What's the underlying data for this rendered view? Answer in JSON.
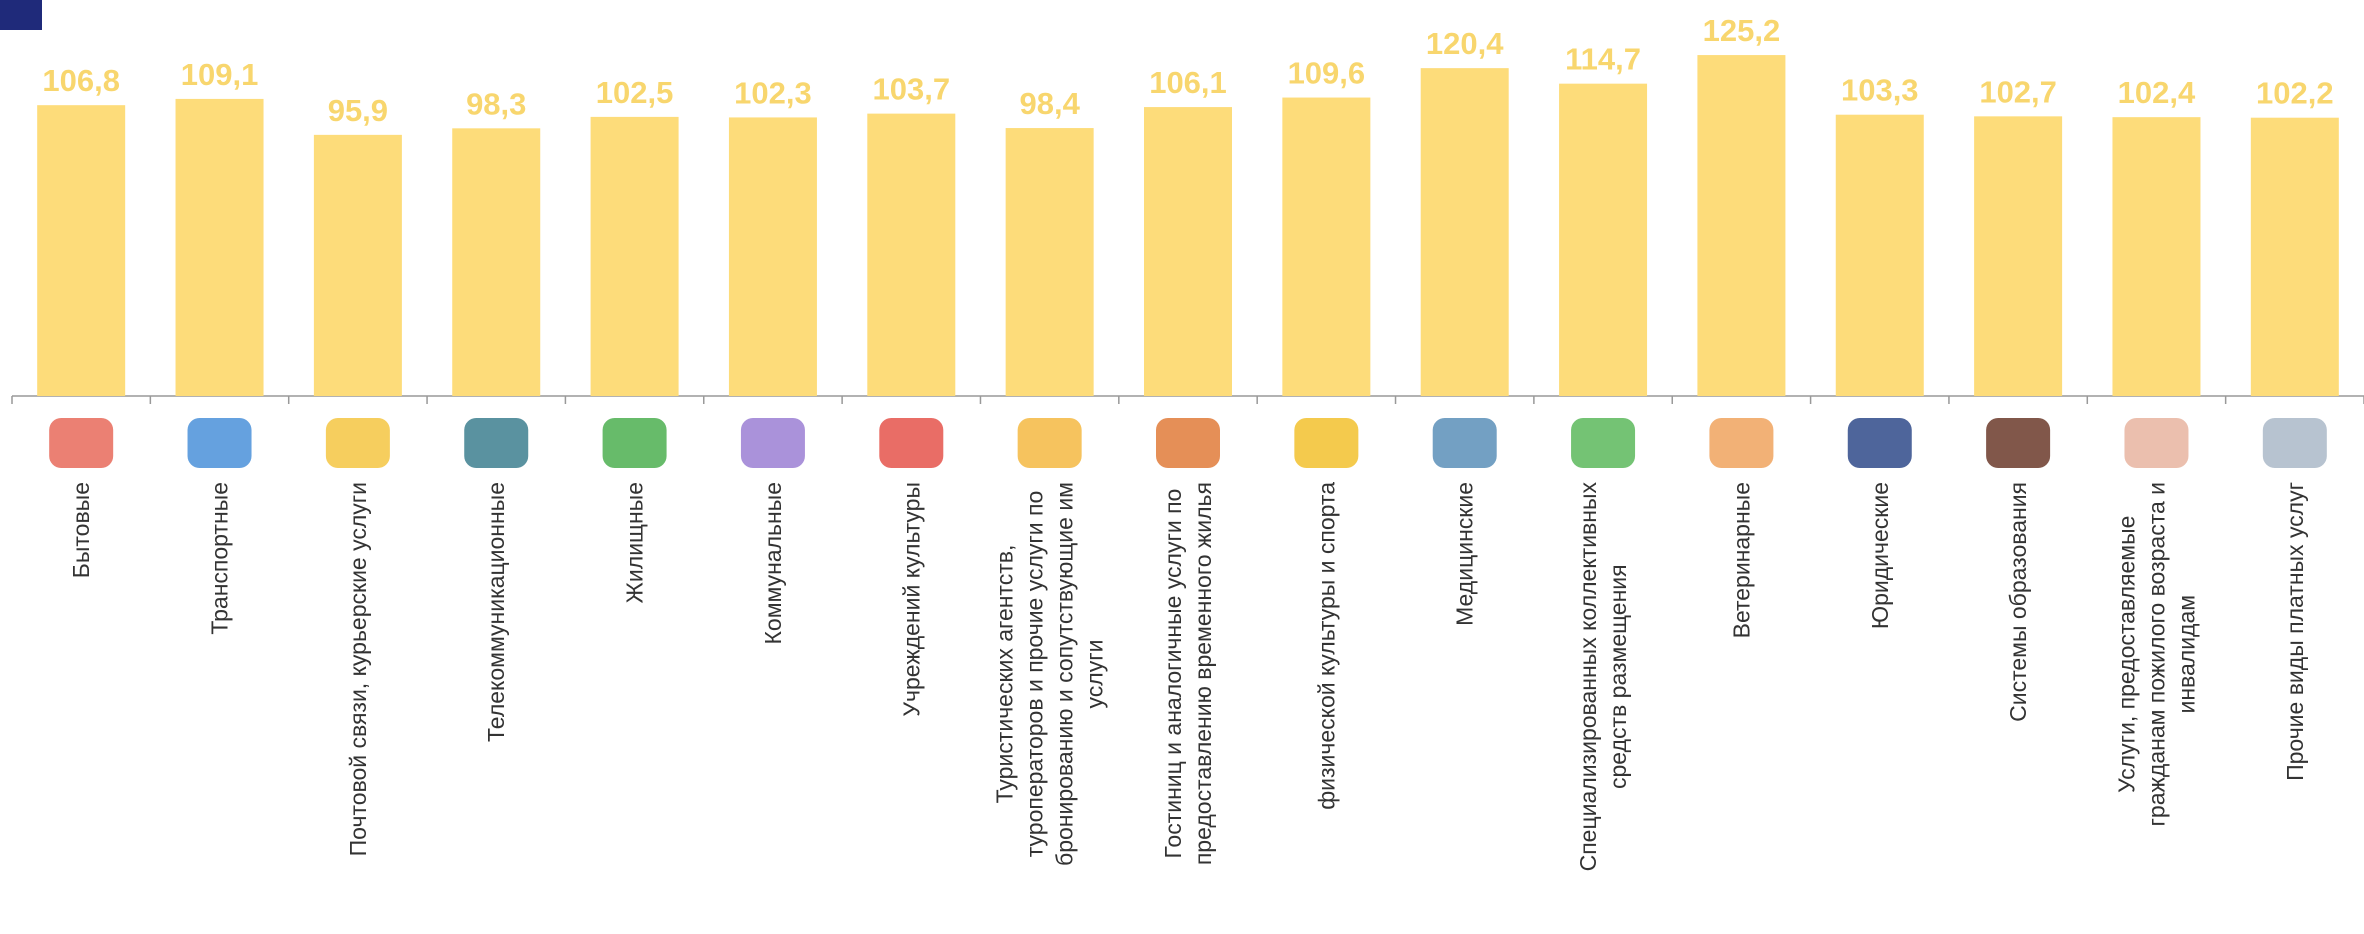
{
  "chart_data": {
    "type": "bar",
    "categories": [
      "Бытовые",
      "Транспортные",
      "Почтовой связи, курьерские услуги",
      "Телекоммуникационные",
      "Жилищные",
      "Коммунальные",
      "Учреждений культуры",
      "Туристических агентств,\nтуроператоров и прочие услуги по\nбронированию и сопутствующие им\nуслуги",
      "Гостиниц и аналогичные услуги по\nпредоставлению временного жилья",
      "физической культуры и спорта",
      "Медицинские",
      "Специализированных коллективных\nсредств размещения",
      "Ветеринарные",
      "Юридические",
      "Системы образования",
      "Услуги, предоставляемые\nгражданам пожилого возраста и\nинвалидам",
      "Прочие виды платных услуг"
    ],
    "values": [
      106.8,
      109.1,
      95.9,
      98.3,
      102.5,
      102.3,
      103.7,
      98.4,
      106.1,
      109.6,
      120.4,
      114.7,
      125.2,
      103.3,
      102.7,
      102.4,
      102.2
    ],
    "value_labels": [
      "106,8",
      "109,1",
      "95,9",
      "98,3",
      "102,5",
      "102,3",
      "103,7",
      "98,4",
      "106,1",
      "109,6",
      "120,4",
      "114,7",
      "125,2",
      "103,3",
      "102,7",
      "102,4",
      "102,2"
    ],
    "color": "#fddc7a",
    "label_color": "#f8d66e",
    "ylim": [
      0,
      130
    ]
  }
}
